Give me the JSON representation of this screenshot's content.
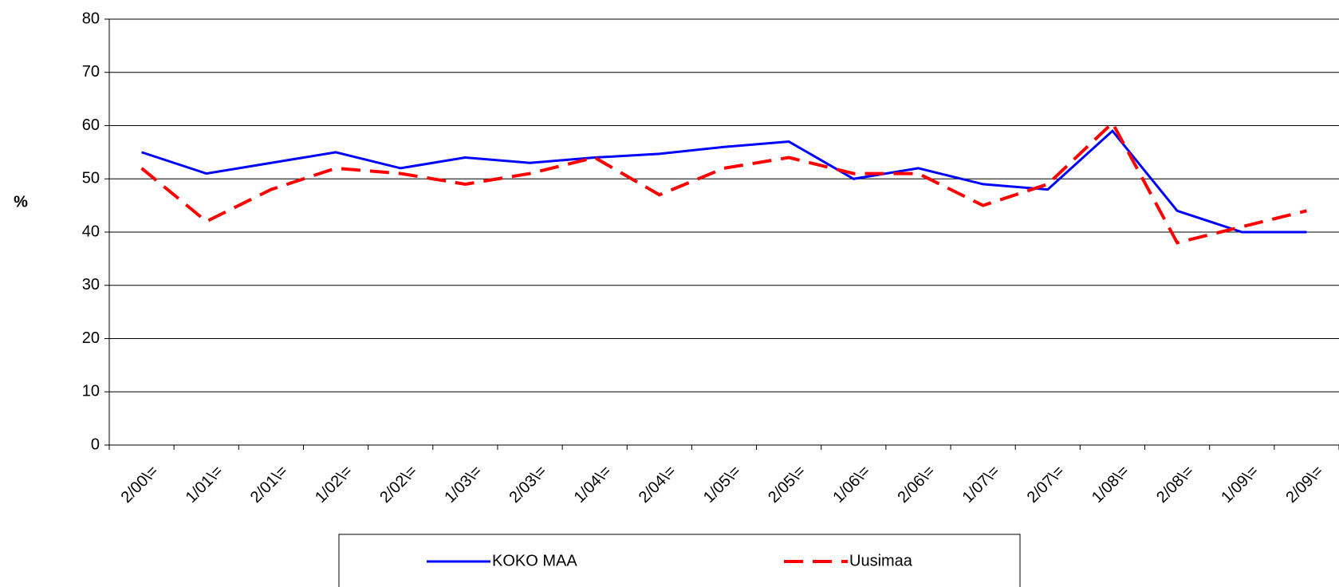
{
  "chart_data": {
    "type": "line",
    "y_label": "%",
    "categories": [
      "2/00\\=",
      "1/01\\=",
      "2/01\\=",
      "1/02\\=",
      "2/02\\=",
      "1/03\\=",
      "2/03\\=",
      "1/04\\=",
      "2/04\\=",
      "1/05\\=",
      "2/05\\=",
      "1/06\\=",
      "2/06\\=",
      "1/07\\=",
      "2/07\\=",
      "1/08\\=",
      "2/08\\=",
      "1/09\\=",
      "2/09\\="
    ],
    "series": [
      {
        "name": "KOKO MAA",
        "color": "#0000ff",
        "dash": false,
        "values": [
          55,
          51,
          53,
          55,
          52,
          54,
          53,
          54,
          54.7,
          56,
          57,
          50,
          52,
          49,
          48,
          59,
          44,
          40,
          40
        ]
      },
      {
        "name": "Uusimaa",
        "color": "#ff0000",
        "dash": true,
        "values": [
          52,
          42,
          48,
          52,
          51,
          49,
          51,
          54,
          47,
          52,
          54,
          51,
          51,
          45,
          49,
          60.5,
          38,
          41,
          44
        ]
      }
    ],
    "ylim": [
      0,
      80
    ],
    "yticks": [
      0,
      10,
      20,
      30,
      40,
      50,
      60,
      70,
      80
    ],
    "grid": true,
    "legend": "bottom"
  }
}
